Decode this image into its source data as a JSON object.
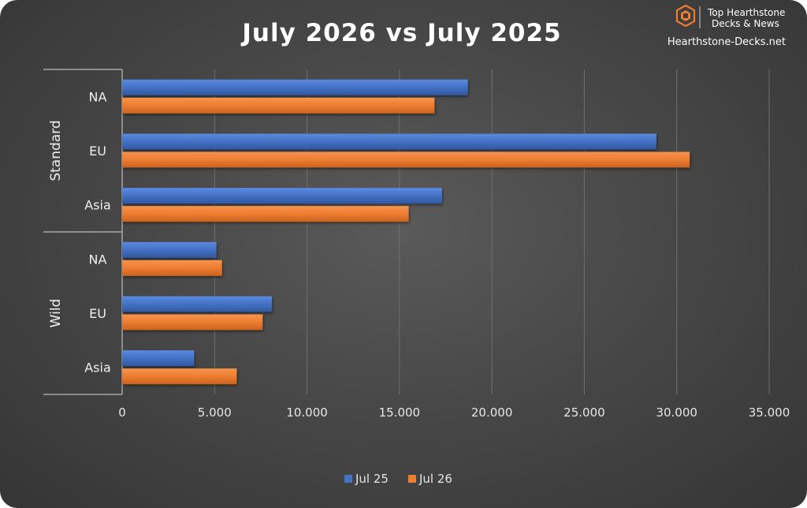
{
  "brand": {
    "name_line1": "Top Hearthstone",
    "name_line2": "Decks & News",
    "site": "Hearthstone-Decks.net",
    "logo_icon": "hexagon-h-logo-icon"
  },
  "colors": {
    "background": "#474747",
    "series_jul25": "#4472c4",
    "series_jul26": "#ed7d31",
    "text": "#ffffff",
    "logo": "#ed7d31"
  },
  "chart_data": {
    "type": "bar",
    "orientation": "horizontal",
    "title": "July 2026 vs July 2025",
    "groups": [
      {
        "label": "Standard",
        "categories": [
          "NA",
          "EU",
          "Asia"
        ]
      },
      {
        "label": "Wild",
        "categories": [
          "NA",
          "EU",
          "Asia"
        ]
      }
    ],
    "series": [
      {
        "name": "Jul 25",
        "color": "#4472c4",
        "values": [
          18700,
          28900,
          17300,
          5100,
          8100,
          3900
        ]
      },
      {
        "name": "Jul 26",
        "color": "#ed7d31",
        "values": [
          16900,
          30700,
          15500,
          5400,
          7600,
          6200
        ]
      }
    ],
    "xlim": [
      0,
      35000
    ],
    "x_ticks": [
      0,
      5000,
      10000,
      15000,
      20000,
      25000,
      30000,
      35000
    ],
    "x_tick_labels": [
      "0",
      "5.000",
      "10.000",
      "15.000",
      "20.000",
      "25.000",
      "30.000",
      "35.000"
    ],
    "grid": true,
    "legend_position": "bottom"
  }
}
